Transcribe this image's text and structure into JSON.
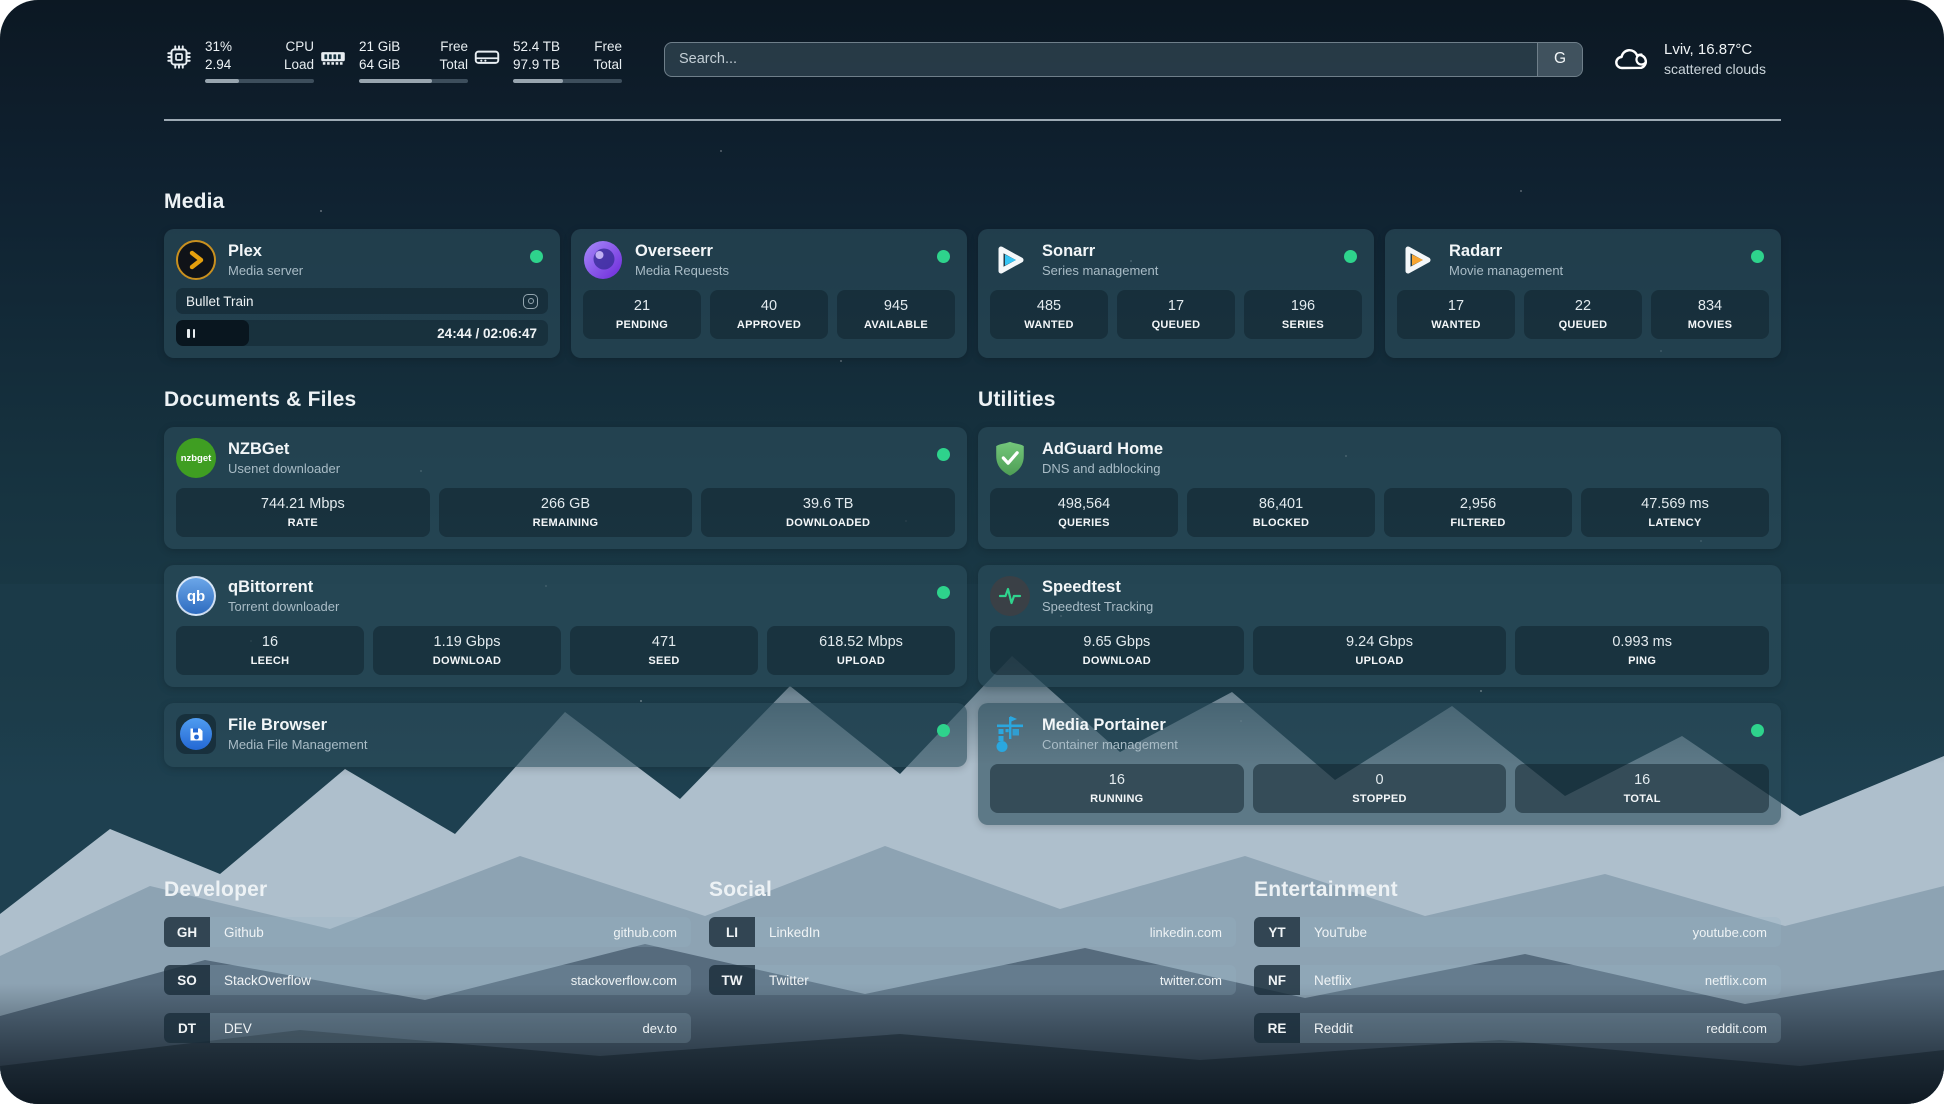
{
  "header": {
    "cpu": {
      "icon": "cpu-icon",
      "value_top": "31%",
      "value_bottom": "2.94",
      "label_top": "CPU",
      "label_bottom": "Load",
      "progress": 31
    },
    "memory": {
      "icon": "memory-icon",
      "value_top": "21 GiB",
      "value_bottom": "64 GiB",
      "label_top": "Free",
      "label_bottom": "Total",
      "progress": 67
    },
    "storage": {
      "icon": "storage-icon",
      "value_top": "52.4 TB",
      "value_bottom": "97.9 TB",
      "label_top": "Free",
      "label_bottom": "Total",
      "progress": 46
    },
    "search": {
      "placeholder": "Search...",
      "engine_button": "G"
    },
    "weather": {
      "location_temp": "Lviv, 16.87°C",
      "condition": "scattered clouds"
    }
  },
  "sections": {
    "media": "Media",
    "documents": "Documents & Files",
    "utilities": "Utilities",
    "developer": "Developer",
    "social": "Social",
    "entertainment": "Entertainment"
  },
  "apps": {
    "plex": {
      "name": "Plex",
      "subtitle": "Media server",
      "icon_glyph": "chevron",
      "now_playing": "Bullet Train",
      "time": "24:44 / 02:06:47",
      "progress_pct": 19.5,
      "online": true
    },
    "overseerr": {
      "name": "Overseerr",
      "subtitle": "Media Requests",
      "online": true,
      "stats": [
        {
          "value": "21",
          "label": "PENDING"
        },
        {
          "value": "40",
          "label": "APPROVED"
        },
        {
          "value": "945",
          "label": "AVAILABLE"
        }
      ]
    },
    "sonarr": {
      "name": "Sonarr",
      "subtitle": "Series management",
      "online": true,
      "stats": [
        {
          "value": "485",
          "label": "WANTED"
        },
        {
          "value": "17",
          "label": "QUEUED"
        },
        {
          "value": "196",
          "label": "SERIES"
        }
      ]
    },
    "radarr": {
      "name": "Radarr",
      "subtitle": "Movie management",
      "online": true,
      "stats": [
        {
          "value": "17",
          "label": "WANTED"
        },
        {
          "value": "22",
          "label": "QUEUED"
        },
        {
          "value": "834",
          "label": "MOVIES"
        }
      ]
    },
    "nzbget": {
      "name": "NZBGet",
      "subtitle": "Usenet downloader",
      "icon_text": "nzbget",
      "online": true,
      "stats": [
        {
          "value": "744.21 Mbps",
          "label": "RATE"
        },
        {
          "value": "266 GB",
          "label": "REMAINING"
        },
        {
          "value": "39.6 TB",
          "label": "DOWNLOADED"
        }
      ]
    },
    "qbittorrent": {
      "name": "qBittorrent",
      "subtitle": "Torrent downloader",
      "icon_text": "qb",
      "online": true,
      "stats": [
        {
          "value": "16",
          "label": "LEECH"
        },
        {
          "value": "1.19 Gbps",
          "label": "DOWNLOAD"
        },
        {
          "value": "471",
          "label": "SEED"
        },
        {
          "value": "618.52 Mbps",
          "label": "UPLOAD"
        }
      ]
    },
    "filebrowser": {
      "name": "File Browser",
      "subtitle": "Media File Management",
      "online": true
    },
    "adguard": {
      "name": "AdGuard Home",
      "subtitle": "DNS and adblocking",
      "online": false,
      "stats": [
        {
          "value": "498,564",
          "label": "QUERIES"
        },
        {
          "value": "86,401",
          "label": "BLOCKED"
        },
        {
          "value": "2,956",
          "label": "FILTERED"
        },
        {
          "value": "47.569 ms",
          "label": "LATENCY"
        }
      ]
    },
    "speedtest": {
      "name": "Speedtest",
      "subtitle": "Speedtest Tracking",
      "online": false,
      "stats": [
        {
          "value": "9.65 Gbps",
          "label": "DOWNLOAD"
        },
        {
          "value": "9.24 Gbps",
          "label": "UPLOAD"
        },
        {
          "value": "0.993 ms",
          "label": "PING"
        }
      ]
    },
    "portainer": {
      "name": "Media Portainer",
      "subtitle": "Container management",
      "online": true,
      "stats": [
        {
          "value": "16",
          "label": "RUNNING"
        },
        {
          "value": "0",
          "label": "STOPPED"
        },
        {
          "value": "16",
          "label": "TOTAL"
        }
      ]
    }
  },
  "links": {
    "developer": [
      {
        "abbr": "GH",
        "name": "Github",
        "url": "github.com"
      },
      {
        "abbr": "SO",
        "name": "StackOverflow",
        "url": "stackoverflow.com"
      },
      {
        "abbr": "DT",
        "name": "DEV",
        "url": "dev.to"
      }
    ],
    "social": [
      {
        "abbr": "LI",
        "name": "LinkedIn",
        "url": "linkedin.com"
      },
      {
        "abbr": "TW",
        "name": "Twitter",
        "url": "twitter.com"
      }
    ],
    "entertainment": [
      {
        "abbr": "YT",
        "name": "YouTube",
        "url": "youtube.com"
      },
      {
        "abbr": "NF",
        "name": "Netflix",
        "url": "netflix.com"
      },
      {
        "abbr": "RE",
        "name": "Reddit",
        "url": "reddit.com"
      }
    ]
  },
  "colors": {
    "status_online": "#2ed38c",
    "plex_gold": "#e5a00d",
    "sonarr_cyan": "#35c5f4",
    "radarr_orange": "#f7a531",
    "nzbget_green": "#3f9e22",
    "adguard_green": "#67b967",
    "portainer_blue": "#2aa7df",
    "speedtest_green": "#2fd48e"
  }
}
